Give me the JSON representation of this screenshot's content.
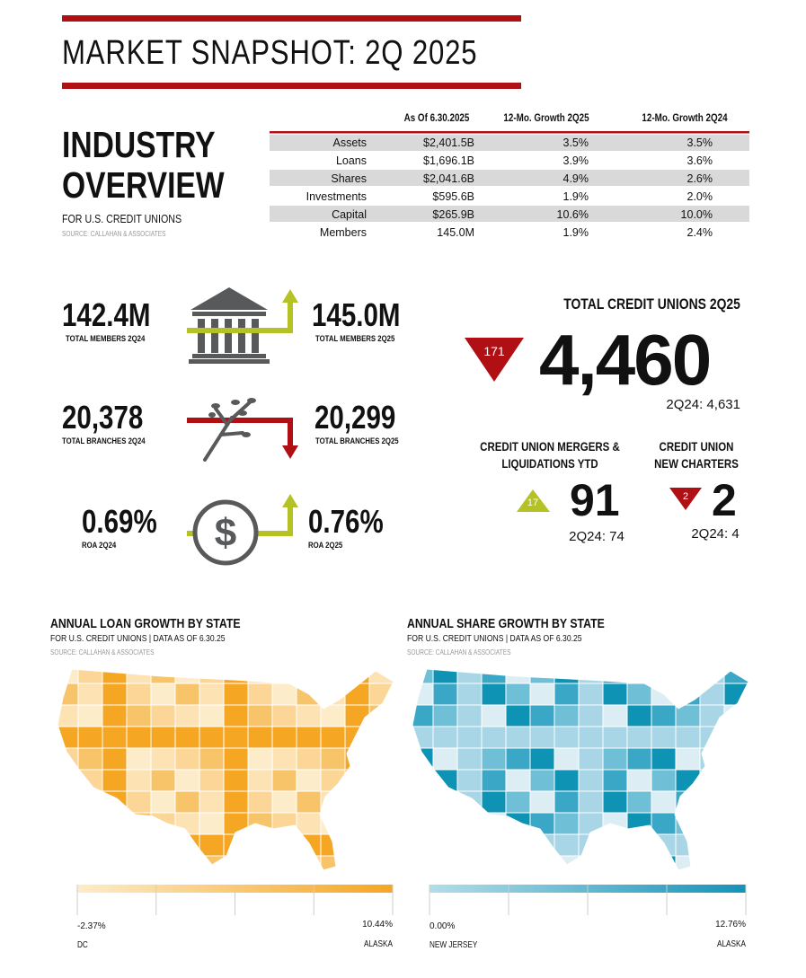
{
  "header": {
    "title": "MARKET SNAPSHOT: 2Q 2025"
  },
  "overview": {
    "title_line1": "INDUSTRY",
    "title_line2": "OVERVIEW",
    "subtitle": "FOR U.S. CREDIT UNIONS",
    "source": "SOURCE: CALLAHAN & ASSOCIATES"
  },
  "table": {
    "columns": [
      "As Of 6.30.2025",
      "12-Mo. Growth 2Q25",
      "12-Mo. Growth 2Q24"
    ],
    "rows": [
      [
        "Assets",
        "$2,401.5B",
        "3.5%",
        "3.5%"
      ],
      [
        "Loans",
        "$1,696.1B",
        "3.9%",
        "3.6%"
      ],
      [
        "Shares",
        "$2,041.6B",
        "4.9%",
        "2.6%"
      ],
      [
        "Investments",
        "$595.6B",
        "1.9%",
        "2.0%"
      ],
      [
        "Capital",
        "$265.9B",
        "10.6%",
        "10.0%"
      ],
      [
        "Members",
        "145.0M",
        "1.9%",
        "2.4%"
      ]
    ]
  },
  "stats": {
    "members": {
      "before": "142.4M",
      "before_label": "TOTAL MEMBERS 2Q24",
      "after": "145.0M",
      "after_label": "TOTAL MEMBERS 2Q25"
    },
    "branches": {
      "before": "20,378",
      "before_label": "TOTAL BRANCHES 2Q24",
      "after": "20,299",
      "after_label": "TOTAL BRANCHES 2Q25"
    },
    "roa": {
      "before": "0.69%",
      "before_label": "ROA 2Q24",
      "after": "0.76%",
      "after_label": "ROA 2Q25"
    }
  },
  "total": {
    "title": "TOTAL CREDIT UNIONS 2Q25",
    "value": "4,460",
    "change": "171",
    "prior": "2Q24: 4,631"
  },
  "mergers": {
    "title_line1": "CREDIT UNION MERGERS &",
    "title_line2": "LIQUIDATIONS YTD",
    "value": "91",
    "change": "17",
    "prior": "2Q24: 74"
  },
  "charters": {
    "title_line1": "CREDIT UNION",
    "title_line2": "NEW CHARTERS",
    "value": "2",
    "change": "2",
    "prior": "2Q24: 4"
  },
  "maps": [
    {
      "title": "ANNUAL LOAN GROWTH BY STATE",
      "subtitle": "FOR U.S. CREDIT UNIONS | DATA AS OF 6.30.25",
      "source": "SOURCE: CALLAHAN & ASSOCIATES",
      "min": "-2.37%",
      "max": "10.44%",
      "min_state": "DC",
      "max_state": "ALASKA"
    },
    {
      "title": "ANNUAL SHARE GROWTH BY STATE",
      "subtitle": "FOR U.S. CREDIT UNIONS | DATA AS OF 6.30.25",
      "source": "SOURCE: CALLAHAN & ASSOCIATES",
      "min": "0.00%",
      "max": "12.76%",
      "min_state": "NEW JERSEY",
      "max_state": "ALASKA"
    }
  ]
}
